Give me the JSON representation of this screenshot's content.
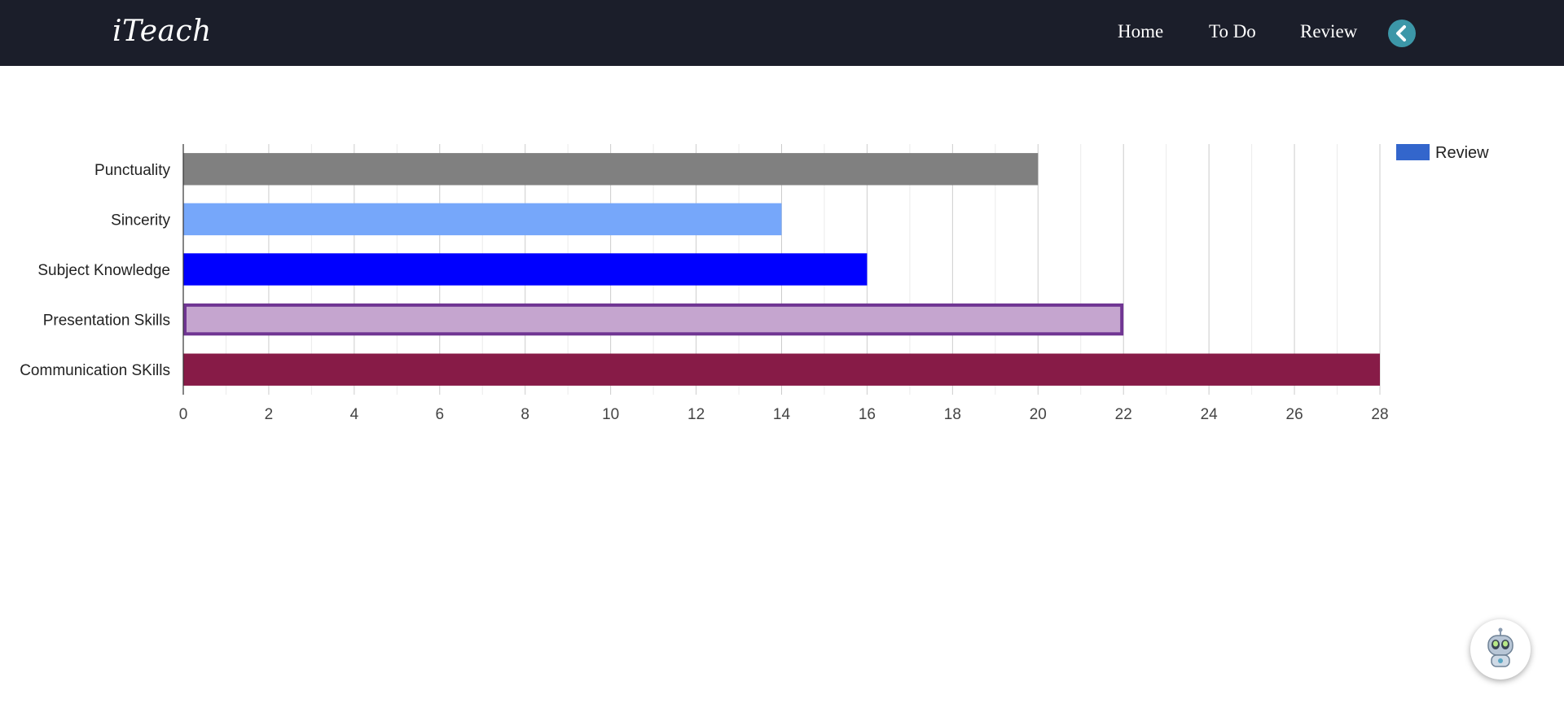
{
  "nav": {
    "brand": "iTeach",
    "links": [
      "Home",
      "To Do",
      "Review"
    ],
    "back_icon": "chevron-left-icon"
  },
  "colors": {
    "navbar": "#1b1e2a",
    "back_button": "#3c97a8",
    "legend_swatch": "#3366cc"
  },
  "chart_data": {
    "type": "bar",
    "orientation": "horizontal",
    "categories": [
      "Punctuality",
      "Sincerity",
      "Subject Knowledge",
      "Presentation Skills",
      "Communication SKills"
    ],
    "values": [
      20,
      14,
      16,
      22,
      28
    ],
    "bar_colors": [
      "#808080",
      "#76a7fa",
      "#0000ff",
      "#c5a5cf",
      "#871b47"
    ],
    "bar_outline": [
      null,
      null,
      null,
      "#703593",
      null
    ],
    "series": [
      {
        "name": "Review",
        "values": [
          20,
          14,
          16,
          22,
          28
        ]
      }
    ],
    "xlim": [
      0,
      28
    ],
    "xticks": [
      0,
      2,
      4,
      6,
      8,
      10,
      12,
      14,
      16,
      18,
      20,
      22,
      24,
      26,
      28
    ],
    "grid": true,
    "legend": "top-right",
    "title": "",
    "xlabel": "",
    "ylabel": ""
  },
  "assistant": {
    "icon": "robot-icon"
  }
}
